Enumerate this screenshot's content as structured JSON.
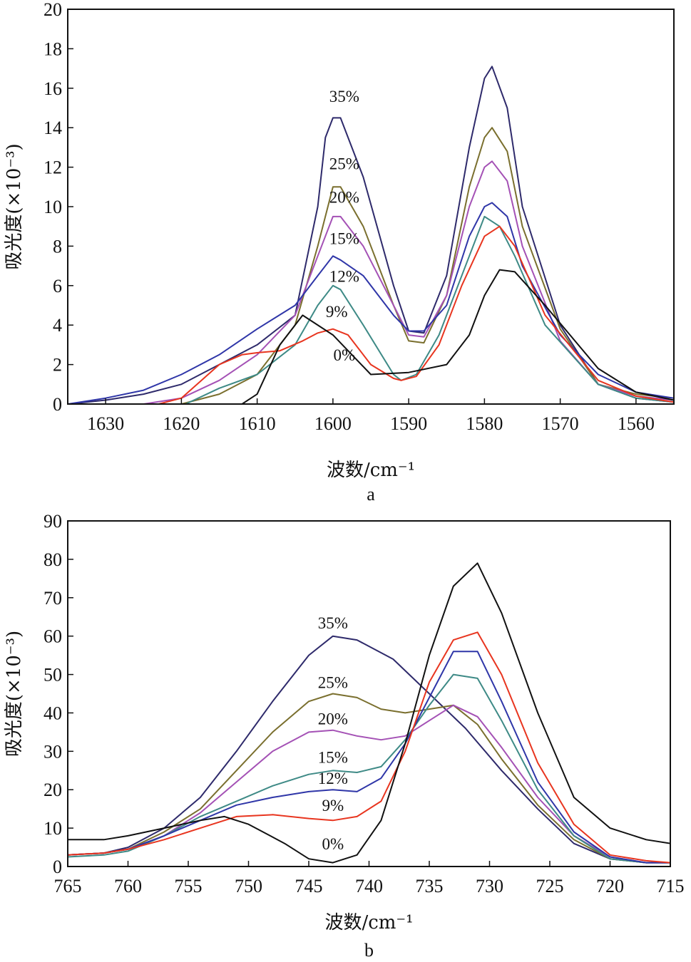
{
  "chart_data": [
    {
      "type": "line",
      "panel_label": "a",
      "xlabel": "波数/cm⁻¹",
      "ylabel": "吸光度(×10⁻³)",
      "xlim": [
        1635,
        1555
      ],
      "ylim": [
        0,
        20
      ],
      "x_reversed": true,
      "xticks": [
        1630,
        1620,
        1610,
        1600,
        1590,
        1580,
        1570,
        1560
      ],
      "yticks": [
        0,
        2,
        4,
        6,
        8,
        10,
        12,
        14,
        16,
        18,
        20
      ],
      "grid": false,
      "series": [
        {
          "name": "35%",
          "color": "#2e2a6b",
          "label_at": [
            1598.5,
            15.3
          ],
          "x": [
            1635,
            1630,
            1625,
            1620,
            1615,
            1610,
            1605,
            1602,
            1601,
            1600,
            1599,
            1596,
            1592,
            1590,
            1588,
            1585,
            1582,
            1580,
            1579,
            1577,
            1575,
            1570,
            1565,
            1560,
            1555
          ],
          "y": [
            0.0,
            0.2,
            0.5,
            1.0,
            2.0,
            3.0,
            4.5,
            10.0,
            13.5,
            14.5,
            14.5,
            11.5,
            6.0,
            3.7,
            3.6,
            6.5,
            13.0,
            16.5,
            17.1,
            15.0,
            10.0,
            4.0,
            1.0,
            0.3,
            0.1
          ]
        },
        {
          "name": "25%",
          "color": "#7a6f2e",
          "label_at": [
            1598.5,
            11.9
          ],
          "x": [
            1635,
            1630,
            1625,
            1620,
            1615,
            1610,
            1605,
            1602,
            1600,
            1599,
            1596,
            1592,
            1590,
            1588,
            1585,
            1582,
            1580,
            1579,
            1577,
            1575,
            1570,
            1565,
            1560,
            1555
          ],
          "y": [
            -0.2,
            -0.2,
            -0.1,
            0.0,
            0.5,
            1.5,
            4.0,
            8.0,
            11.0,
            11.0,
            9.0,
            5.0,
            3.2,
            3.1,
            5.5,
            11.0,
            13.5,
            14.0,
            12.8,
            9.0,
            3.8,
            1.0,
            0.5,
            0.3
          ]
        },
        {
          "name": "20%",
          "color": "#a451b5",
          "label_at": [
            1598.5,
            10.2
          ],
          "x": [
            1635,
            1630,
            1625,
            1620,
            1615,
            1610,
            1605,
            1602,
            1600,
            1599,
            1596,
            1592,
            1590,
            1588,
            1585,
            1582,
            1580,
            1579,
            1577,
            1575,
            1570,
            1565,
            1560,
            1555
          ],
          "y": [
            -0.2,
            -0.2,
            0.0,
            0.3,
            1.2,
            2.5,
            4.5,
            7.5,
            9.5,
            9.5,
            8.0,
            5.0,
            3.5,
            3.4,
            5.5,
            10.0,
            12.0,
            12.3,
            11.3,
            8.0,
            3.2,
            1.0,
            0.4,
            0.2
          ]
        },
        {
          "name": "15%",
          "color": "#2f36a8",
          "label_at": [
            1598.5,
            8.1
          ],
          "x": [
            1635,
            1630,
            1625,
            1620,
            1615,
            1610,
            1605,
            1602,
            1600,
            1599,
            1596,
            1592,
            1590,
            1588,
            1585,
            1582,
            1580,
            1579,
            1577,
            1575,
            1570,
            1565,
            1560,
            1555
          ],
          "y": [
            0.0,
            0.3,
            0.7,
            1.5,
            2.5,
            3.8,
            5.0,
            6.5,
            7.5,
            7.3,
            6.5,
            4.5,
            3.7,
            3.7,
            5.0,
            8.5,
            10.0,
            10.2,
            9.5,
            7.0,
            3.5,
            1.5,
            0.6,
            0.3
          ]
        },
        {
          "name": "12%",
          "color": "#3e8a86",
          "label_at": [
            1598.5,
            6.2
          ],
          "x": [
            1635,
            1630,
            1625,
            1620,
            1615,
            1610,
            1605,
            1602,
            1600,
            1599,
            1596,
            1592,
            1591,
            1589,
            1586,
            1582,
            1580,
            1578,
            1576,
            1572,
            1565,
            1560,
            1555
          ],
          "y": [
            -0.3,
            -0.3,
            -0.2,
            -0.1,
            0.8,
            1.5,
            3.0,
            5.0,
            6.0,
            5.8,
            4.0,
            1.5,
            1.2,
            1.5,
            3.5,
            7.5,
            9.5,
            9.0,
            7.5,
            4.0,
            1.0,
            0.3,
            0.1
          ]
        },
        {
          "name": "9%",
          "color": "#e8351f",
          "label_at": [
            1599.5,
            4.4
          ],
          "x": [
            1635,
            1630,
            1625,
            1620,
            1615,
            1612,
            1610,
            1607,
            1604,
            1602,
            1600,
            1598,
            1595,
            1592,
            1591,
            1589,
            1586,
            1583,
            1580,
            1578,
            1576,
            1572,
            1565,
            1560,
            1555
          ],
          "y": [
            -0.3,
            -0.3,
            -0.2,
            0.3,
            2.0,
            2.5,
            2.6,
            2.7,
            3.2,
            3.6,
            3.8,
            3.5,
            2.0,
            1.3,
            1.2,
            1.4,
            3.0,
            6.0,
            8.5,
            9.0,
            8.0,
            4.5,
            1.2,
            0.4,
            0.1
          ]
        },
        {
          "name": "0%",
          "color": "#111111",
          "label_at": [
            1598.5,
            2.2
          ],
          "x": [
            1635,
            1625,
            1620,
            1615,
            1612,
            1610,
            1607,
            1604,
            1600,
            1595,
            1590,
            1585,
            1582,
            1580,
            1578,
            1576,
            1572,
            1565,
            1560,
            1555
          ],
          "y": [
            -0.5,
            -0.5,
            -0.5,
            -0.3,
            0.0,
            0.5,
            3.0,
            4.5,
            3.5,
            1.5,
            1.6,
            2.0,
            3.5,
            5.5,
            6.8,
            6.7,
            5.0,
            1.8,
            0.6,
            0.2
          ]
        }
      ]
    },
    {
      "type": "line",
      "panel_label": "b",
      "xlabel": "波数/cm⁻¹",
      "ylabel": "吸光度(×10⁻³)",
      "xlim": [
        765,
        715
      ],
      "ylim": [
        0,
        90
      ],
      "x_reversed": true,
      "xticks": [
        765,
        760,
        755,
        750,
        745,
        740,
        735,
        730,
        725,
        720,
        715
      ],
      "yticks": [
        0,
        10,
        20,
        30,
        40,
        50,
        60,
        70,
        80,
        90
      ],
      "grid": false,
      "series": [
        {
          "name": "35%",
          "color": "#2e2a6b",
          "label_at": [
            743,
            62
          ],
          "x": [
            765,
            762,
            760,
            757,
            754,
            751,
            748,
            745,
            743,
            741,
            738,
            735,
            732,
            729,
            726,
            723,
            720,
            717,
            715
          ],
          "y": [
            3,
            3.5,
            5,
            10,
            18,
            30,
            43,
            55,
            60,
            59,
            54,
            45,
            36,
            25,
            15,
            6,
            2,
            1,
            1
          ]
        },
        {
          "name": "25%",
          "color": "#7a6f2e",
          "label_at": [
            743,
            46.5
          ],
          "x": [
            765,
            762,
            760,
            757,
            754,
            751,
            748,
            745,
            743,
            741,
            739,
            737,
            735,
            733,
            731,
            729,
            726,
            723,
            720,
            717,
            715
          ],
          "y": [
            3,
            3.5,
            4.5,
            9,
            15,
            25,
            35,
            43,
            45,
            44,
            41,
            40,
            41,
            42,
            37,
            28,
            16,
            7,
            2,
            1,
            1
          ]
        },
        {
          "name": "20%",
          "color": "#a451b5",
          "label_at": [
            743,
            37
          ],
          "x": [
            765,
            762,
            760,
            757,
            754,
            751,
            748,
            745,
            743,
            741,
            739,
            737,
            735,
            733,
            731,
            729,
            726,
            723,
            720,
            717,
            715
          ],
          "y": [
            3,
            3.5,
            4.5,
            8,
            14,
            22,
            30,
            35,
            35.5,
            34,
            33,
            34,
            38,
            42,
            39,
            31,
            18,
            8,
            2.5,
            1,
            1
          ]
        },
        {
          "name": "15%",
          "color": "#3e8a86",
          "label_at": [
            743,
            27
          ],
          "x": [
            765,
            762,
            760,
            757,
            754,
            751,
            748,
            745,
            743,
            741,
            739,
            737,
            735,
            733,
            731,
            729,
            726,
            723,
            720,
            717,
            715
          ],
          "y": [
            2.5,
            3,
            4,
            8,
            13,
            17,
            21,
            24,
            25,
            24.5,
            26,
            33,
            42,
            50,
            49,
            38,
            20,
            8,
            2,
            1,
            1
          ]
        },
        {
          "name": "12%",
          "color": "#2f36a8",
          "label_at": [
            743,
            21.5
          ],
          "x": [
            765,
            762,
            760,
            757,
            754,
            751,
            748,
            745,
            743,
            741,
            739,
            737,
            735,
            733,
            731,
            729,
            726,
            723,
            720,
            717,
            715
          ],
          "y": [
            3,
            3.5,
            4.5,
            8,
            12,
            16,
            18,
            19.5,
            20,
            19.5,
            23,
            32,
            44,
            56,
            56,
            43,
            22,
            9,
            2.5,
            1,
            1
          ]
        },
        {
          "name": "9%",
          "color": "#e8351f",
          "label_at": [
            743,
            14.5
          ],
          "x": [
            765,
            762,
            760,
            757,
            754,
            751,
            748,
            745,
            743,
            741,
            739,
            737,
            735,
            733,
            731,
            729,
            726,
            723,
            720,
            717,
            715
          ],
          "y": [
            3,
            3.5,
            4.5,
            7,
            10,
            13,
            13.5,
            12.5,
            12,
            13,
            17,
            30,
            48,
            59,
            61,
            50,
            27,
            11,
            3,
            1.5,
            1
          ]
        },
        {
          "name": "0%",
          "color": "#111111",
          "label_at": [
            743,
            4.5
          ],
          "x": [
            765,
            762,
            760,
            757,
            754,
            752,
            750,
            747,
            745,
            743,
            741,
            739,
            737,
            735,
            733,
            731,
            729,
            726,
            723,
            720,
            717,
            715
          ],
          "y": [
            7,
            7,
            8,
            10,
            12,
            13,
            11,
            6,
            2,
            1,
            3,
            12,
            32,
            55,
            73,
            79,
            66,
            40,
            18,
            10,
            7,
            6
          ]
        }
      ]
    }
  ]
}
